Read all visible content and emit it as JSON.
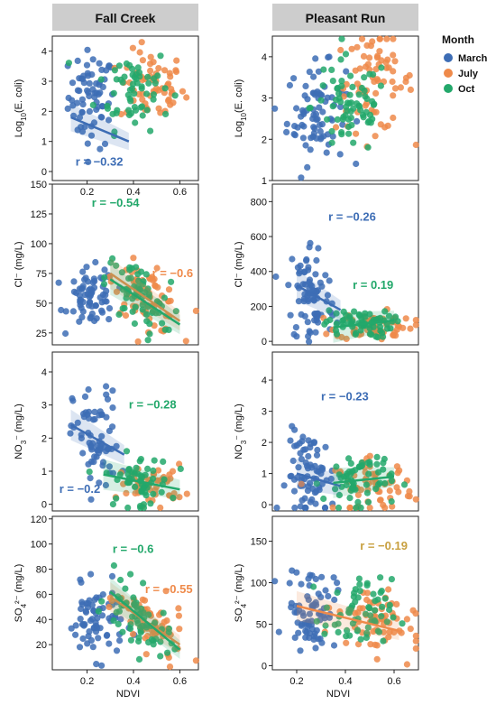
{
  "colors": {
    "March": "#3d6db5",
    "July": "#ef8a4a",
    "Oct": "#23a86b",
    "header_bg": "#cdcdcd",
    "tan": "#c8a040"
  },
  "legend": {
    "title": "Month",
    "entries": [
      "March",
      "July",
      "Oct"
    ]
  },
  "x_axis_label": "NDVI",
  "chart_data": [
    {
      "type": "scatter",
      "site": "Fall Creek",
      "ylabel_html": [
        "Log",
        "10",
        "(E. coli)"
      ],
      "xlim": [
        0.05,
        0.68
      ],
      "ylim": [
        -0.3,
        4.5
      ],
      "yticks": [
        "0",
        "1",
        "2",
        "3",
        "4"
      ],
      "xticks": [
        "0.2",
        "0.4",
        "0.6"
      ],
      "clusters": [
        {
          "month": "March",
          "xc": 0.22,
          "xs": 0.05,
          "yc": 2.4,
          "ys": 0.8,
          "n": 70,
          "slope": -3.5
        },
        {
          "month": "July",
          "xc": 0.48,
          "xs": 0.07,
          "yc": 2.8,
          "ys": 0.6,
          "n": 60,
          "slope": 0
        },
        {
          "month": "Oct",
          "xc": 0.4,
          "xs": 0.08,
          "yc": 2.8,
          "ys": 0.7,
          "n": 60,
          "slope": 0
        }
      ],
      "fits": [
        {
          "month": "March",
          "x": [
            0.13,
            0.38
          ],
          "y": [
            1.8,
            1.0
          ]
        }
      ],
      "annotations": [
        {
          "text": "r = −0.32",
          "month": "March",
          "x": 0.15,
          "y": 0.2
        }
      ]
    },
    {
      "type": "scatter",
      "site": "Pleasant Run",
      "ylabel_html": [
        "Log",
        "10",
        "(E. coli)"
      ],
      "xlim": [
        0.1,
        0.7
      ],
      "ylim": [
        1,
        4.5
      ],
      "yticks": [
        "1",
        "2",
        "3",
        "4"
      ],
      "xticks": [],
      "clusters": [
        {
          "month": "March",
          "xc": 0.28,
          "xs": 0.06,
          "yc": 2.6,
          "ys": 0.6,
          "n": 80,
          "slope": 0
        },
        {
          "month": "July",
          "xc": 0.52,
          "xs": 0.08,
          "yc": 3.4,
          "ys": 0.6,
          "n": 70,
          "slope": 0
        },
        {
          "month": "Oct",
          "xc": 0.42,
          "xs": 0.08,
          "yc": 2.8,
          "ys": 0.6,
          "n": 70,
          "slope": 0
        }
      ],
      "fits": [],
      "annotations": []
    },
    {
      "type": "scatter",
      "site": "",
      "ylabel_html": [
        "Cl",
        "",
        "⁻ (mg/L)"
      ],
      "xlim": [
        0.05,
        0.68
      ],
      "ylim": [
        15,
        150
      ],
      "yticks": [
        "25",
        "50",
        "75",
        "100",
        "125",
        "150"
      ],
      "xticks": [],
      "clusters": [
        {
          "month": "March",
          "xc": 0.22,
          "xs": 0.05,
          "yc": 55,
          "ys": 12,
          "n": 70,
          "slope": 0
        },
        {
          "month": "July",
          "xc": 0.46,
          "xs": 0.07,
          "yc": 55,
          "ys": 12,
          "n": 65,
          "slope": -100
        },
        {
          "month": "Oct",
          "xc": 0.42,
          "xs": 0.07,
          "yc": 55,
          "ys": 14,
          "n": 65,
          "slope": -110
        }
      ],
      "fits": [
        {
          "month": "July",
          "x": [
            0.3,
            0.6
          ],
          "y": [
            75,
            35
          ]
        },
        {
          "month": "Oct",
          "x": [
            0.3,
            0.6
          ],
          "y": [
            70,
            32
          ]
        }
      ],
      "annotations": [
        {
          "text": "r = −0.54",
          "month": "Oct",
          "x": 0.22,
          "y": 131
        },
        {
          "text": "r = −0.6",
          "month": "July",
          "x": 0.48,
          "y": 72
        }
      ]
    },
    {
      "type": "scatter",
      "site": "",
      "ylabel_html": [
        "Cl",
        "",
        "⁻ (mg/L)"
      ],
      "xlim": [
        0.1,
        0.7
      ],
      "ylim": [
        -20,
        900
      ],
      "yticks": [
        "0",
        "200",
        "400",
        "600",
        "800"
      ],
      "xticks": [],
      "clusters": [
        {
          "month": "March",
          "xc": 0.26,
          "xs": 0.05,
          "yc": 260,
          "ys": 160,
          "n": 80,
          "slope": -500
        },
        {
          "month": "July",
          "xc": 0.52,
          "xs": 0.08,
          "yc": 90,
          "ys": 40,
          "n": 65,
          "slope": 0
        },
        {
          "month": "Oct",
          "xc": 0.45,
          "xs": 0.07,
          "yc": 100,
          "ys": 40,
          "n": 65,
          "slope": 0
        }
      ],
      "fits": [
        {
          "month": "March",
          "x": [
            0.2,
            0.38
          ],
          "y": [
            320,
            180
          ]
        },
        {
          "month": "Oct",
          "x": [
            0.35,
            0.6
          ],
          "y": [
            80,
            120
          ]
        }
      ],
      "annotations": [
        {
          "text": "r = −0.26",
          "month": "March",
          "x": 0.33,
          "y": 690
        },
        {
          "text": "r = 0.19",
          "month": "Oct",
          "x": 0.43,
          "y": 300
        }
      ]
    },
    {
      "type": "scatter",
      "site": "",
      "ylabel_html": [
        "NO",
        "3",
        "⁻ (mg/L)"
      ],
      "xlim": [
        0.05,
        0.68
      ],
      "ylim": [
        -0.2,
        4.6
      ],
      "yticks": [
        "0",
        "1",
        "2",
        "3",
        "4"
      ],
      "xticks": [],
      "clusters": [
        {
          "month": "March",
          "xc": 0.24,
          "xs": 0.05,
          "yc": 1.9,
          "ys": 0.8,
          "n": 70,
          "slope": -4
        },
        {
          "month": "July",
          "xc": 0.48,
          "xs": 0.07,
          "yc": 0.6,
          "ys": 0.3,
          "n": 55,
          "slope": 0
        },
        {
          "month": "Oct",
          "xc": 0.42,
          "xs": 0.07,
          "yc": 0.7,
          "ys": 0.4,
          "n": 55,
          "slope": -2
        }
      ],
      "fits": [
        {
          "month": "March",
          "x": [
            0.13,
            0.36
          ],
          "y": [
            2.4,
            1.5
          ]
        },
        {
          "month": "Oct",
          "x": [
            0.27,
            0.6
          ],
          "y": [
            0.9,
            0.45
          ]
        }
      ],
      "annotations": [
        {
          "text": "r = −0.28",
          "month": "Oct",
          "x": 0.38,
          "y": 2.9
        },
        {
          "text": "r = −0.2",
          "month": "March",
          "x": 0.08,
          "y": 0.35
        }
      ]
    },
    {
      "type": "scatter",
      "site": "",
      "ylabel_html": [
        "NO",
        "3",
        "⁻ (mg/L)"
      ],
      "xlim": [
        0.1,
        0.7
      ],
      "ylim": [
        -0.2,
        4.9
      ],
      "yticks": [
        "0",
        "1",
        "2",
        "3",
        "4"
      ],
      "xticks": [],
      "clusters": [
        {
          "month": "March",
          "xc": 0.26,
          "xs": 0.05,
          "yc": 0.9,
          "ys": 0.7,
          "n": 75,
          "slope": -2
        },
        {
          "month": "July",
          "xc": 0.52,
          "xs": 0.08,
          "yc": 0.6,
          "ys": 0.4,
          "n": 60,
          "slope": 0
        },
        {
          "month": "Oct",
          "xc": 0.45,
          "xs": 0.07,
          "yc": 0.8,
          "ys": 0.5,
          "n": 60,
          "slope": 0
        }
      ],
      "fits": [
        {
          "month": "March",
          "x": [
            0.2,
            0.38
          ],
          "y": [
            1.0,
            0.6
          ]
        },
        {
          "month": "Oct",
          "x": [
            0.35,
            0.6
          ],
          "y": [
            0.7,
            0.9
          ]
        }
      ],
      "annotations": [
        {
          "text": "r = −0.23",
          "month": "March",
          "x": 0.3,
          "y": 3.35
        }
      ]
    },
    {
      "type": "scatter",
      "site": "",
      "ylabel_html": [
        "SO",
        "4",
        "²⁻ (mg/L)"
      ],
      "xlim": [
        0.05,
        0.68
      ],
      "ylim": [
        0,
        122
      ],
      "yticks": [
        "20",
        "40",
        "60",
        "80",
        "100",
        "120"
      ],
      "xticks": [
        "0.2",
        "0.4",
        "0.6"
      ],
      "clusters": [
        {
          "month": "March",
          "xc": 0.24,
          "xs": 0.06,
          "yc": 38,
          "ys": 14,
          "n": 70,
          "slope": 0
        },
        {
          "month": "July",
          "xc": 0.48,
          "xs": 0.07,
          "yc": 35,
          "ys": 12,
          "n": 60,
          "slope": -120
        },
        {
          "month": "Oct",
          "xc": 0.42,
          "xs": 0.07,
          "yc": 38,
          "ys": 13,
          "n": 60,
          "slope": -120
        }
      ],
      "fits": [
        {
          "month": "July",
          "x": [
            0.3,
            0.6
          ],
          "y": [
            58,
            20
          ]
        },
        {
          "month": "Oct",
          "x": [
            0.3,
            0.6
          ],
          "y": [
            62,
            16
          ]
        }
      ],
      "annotations": [
        {
          "text": "r = −0.6",
          "month": "Oct",
          "x": 0.31,
          "y": 93
        },
        {
          "text": "r = −0.55",
          "month": "July",
          "x": 0.45,
          "y": 61
        }
      ]
    },
    {
      "type": "scatter",
      "site": "",
      "ylabel_html": [
        "SO",
        "4",
        "²⁻ (mg/L)"
      ],
      "xlim": [
        0.1,
        0.7
      ],
      "ylim": [
        -5,
        180
      ],
      "yticks": [
        "0",
        "50",
        "100",
        "150"
      ],
      "xticks": [
        "0.2",
        "0.4",
        "0.6"
      ],
      "clusters": [
        {
          "month": "March",
          "xc": 0.26,
          "xs": 0.05,
          "yc": 70,
          "ys": 25,
          "n": 75,
          "slope": 0
        },
        {
          "month": "July",
          "xc": 0.52,
          "xs": 0.08,
          "yc": 55,
          "ys": 20,
          "n": 65,
          "slope": -80
        },
        {
          "month": "Oct",
          "xc": 0.45,
          "xs": 0.07,
          "yc": 60,
          "ys": 22,
          "n": 65,
          "slope": 0
        }
      ],
      "fits": [
        {
          "month": "July",
          "x": [
            0.2,
            0.62
          ],
          "y": [
            72,
            42
          ]
        }
      ],
      "annotations": [
        {
          "text": "r = −0.19",
          "month": "tan",
          "x": 0.46,
          "y": 140
        }
      ]
    }
  ]
}
